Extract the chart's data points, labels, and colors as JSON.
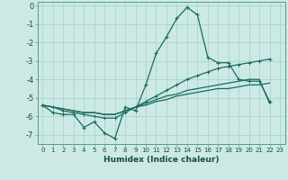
{
  "title": "",
  "xlabel": "Humidex (Indice chaleur)",
  "background_color": "#cce9e5",
  "grid_color": "#aad4ce",
  "line_color": "#1a6b5e",
  "x_values": [
    0,
    1,
    2,
    3,
    4,
    5,
    6,
    7,
    8,
    9,
    10,
    11,
    12,
    13,
    14,
    15,
    16,
    17,
    18,
    19,
    20,
    21,
    22
  ],
  "line1_y": [
    -5.4,
    -5.8,
    -5.9,
    -5.9,
    -6.6,
    -6.3,
    -6.9,
    -7.2,
    -5.5,
    -5.7,
    -4.3,
    -2.6,
    -1.7,
    -0.7,
    -0.1,
    -0.5,
    -2.8,
    -3.1,
    -3.1,
    -4.0,
    -4.1,
    -4.1,
    -5.2
  ],
  "line2_y": [
    -5.4,
    -5.5,
    -5.7,
    -5.8,
    -5.9,
    -6.0,
    -6.1,
    -6.1,
    -5.8,
    -5.5,
    -5.2,
    -4.9,
    -4.6,
    -4.3,
    -4.0,
    -3.8,
    -3.6,
    -3.4,
    -3.3,
    -3.2,
    -3.1,
    -3.0,
    -2.9
  ],
  "line3_y": [
    -5.4,
    -5.5,
    -5.6,
    -5.7,
    -5.8,
    -5.8,
    -5.9,
    -5.9,
    -5.7,
    -5.5,
    -5.4,
    -5.2,
    -5.1,
    -4.9,
    -4.8,
    -4.7,
    -4.6,
    -4.5,
    -4.5,
    -4.4,
    -4.3,
    -4.3,
    -4.2
  ],
  "line4_y": [
    -5.4,
    -5.5,
    -5.6,
    -5.7,
    -5.8,
    -5.8,
    -5.9,
    -5.9,
    -5.7,
    -5.5,
    -5.3,
    -5.1,
    -4.9,
    -4.8,
    -4.6,
    -4.5,
    -4.4,
    -4.3,
    -4.2,
    -4.1,
    -4.0,
    -4.0,
    -5.3
  ],
  "ylim": [
    -7.5,
    0.2
  ],
  "yticks": [
    0,
    -1,
    -2,
    -3,
    -4,
    -5,
    -6,
    -7
  ],
  "xlim": [
    -0.5,
    23.5
  ],
  "xticks": [
    0,
    1,
    2,
    3,
    4,
    5,
    6,
    7,
    8,
    9,
    10,
    11,
    12,
    13,
    14,
    15,
    16,
    17,
    18,
    19,
    20,
    21,
    22,
    23
  ]
}
